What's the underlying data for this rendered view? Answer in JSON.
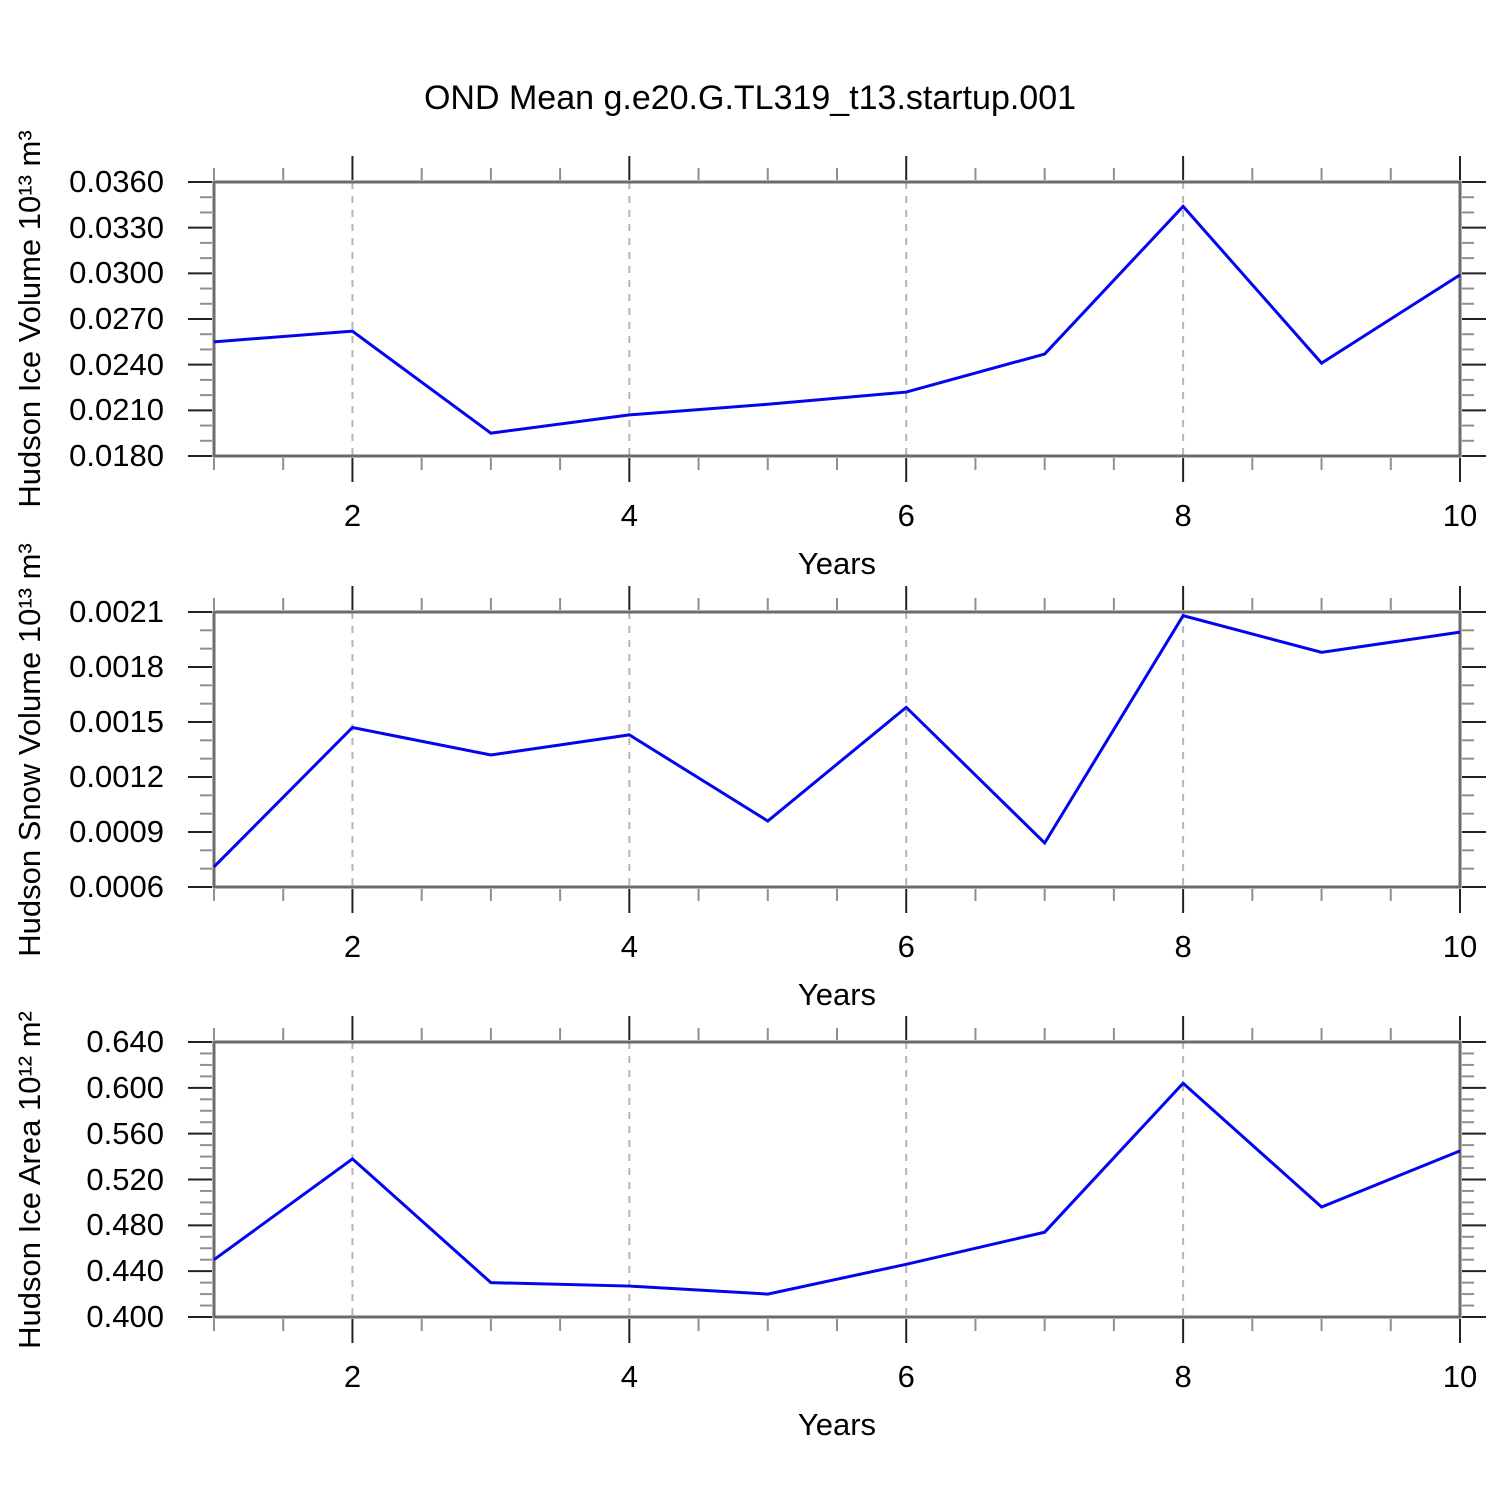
{
  "title": "OND Mean g.e20.G.TL319_t13.startup.001",
  "colors": {
    "line": "#0404ee",
    "grid": "#b5b5b5",
    "frame": "#6b6b6b",
    "tick_major": "#222222",
    "tick_minor": "#8f8f8f",
    "text": "#000000"
  },
  "chart_data": [
    {
      "type": "line",
      "ylabel": "Hudson Ice Volume 10¹³ m³",
      "xlabel": "Years",
      "x": [
        1,
        2,
        3,
        4,
        5,
        6,
        7,
        8,
        9,
        10
      ],
      "values": [
        0.0255,
        0.0262,
        0.0195,
        0.0207,
        0.0214,
        0.0222,
        0.0247,
        0.0344,
        0.0241,
        0.0299
      ],
      "xlim": [
        1,
        10
      ],
      "ylim": [
        0.018,
        0.036
      ],
      "ytick_values": [
        0.036,
        0.033,
        0.03,
        0.027,
        0.024,
        0.021,
        0.018
      ],
      "ytick_labels": [
        "0.0360",
        "0.0330",
        "0.0300",
        "0.0270",
        "0.0240",
        "0.0210",
        "0.0180"
      ],
      "y_minor_step": 0.001,
      "xtick_values": [
        2,
        4,
        6,
        8,
        10
      ],
      "xtick_labels": [
        "2",
        "4",
        "6",
        "8",
        "10"
      ],
      "x_minor_step": 0.5,
      "grid_x": [
        2,
        4,
        6,
        8
      ],
      "grid_on": true,
      "legend": null
    },
    {
      "type": "line",
      "ylabel": "Hudson Snow Volume 10¹³ m³",
      "xlabel": "Years",
      "x": [
        1,
        2,
        3,
        4,
        5,
        6,
        7,
        8,
        9,
        10
      ],
      "values": [
        0.00071,
        0.00147,
        0.00132,
        0.00143,
        0.00096,
        0.00158,
        0.00084,
        0.00208,
        0.00188,
        0.00199
      ],
      "xlim": [
        1,
        10
      ],
      "ylim": [
        0.0006,
        0.0021
      ],
      "ytick_values": [
        0.0021,
        0.0018,
        0.0015,
        0.0012,
        0.0009,
        0.0006
      ],
      "ytick_labels": [
        "0.0021",
        "0.0018",
        "0.0015",
        "0.0012",
        "0.0009",
        "0.0006"
      ],
      "y_minor_step": 0.0001,
      "xtick_values": [
        2,
        4,
        6,
        8,
        10
      ],
      "xtick_labels": [
        "2",
        "4",
        "6",
        "8",
        "10"
      ],
      "x_minor_step": 0.5,
      "grid_x": [
        2,
        4,
        6,
        8
      ],
      "grid_on": true,
      "legend": null
    },
    {
      "type": "line",
      "ylabel": "Hudson Ice Area 10¹² m²",
      "xlabel": "Years",
      "x": [
        1,
        2,
        3,
        4,
        5,
        6,
        7,
        8,
        9,
        10
      ],
      "values": [
        0.45,
        0.538,
        0.43,
        0.427,
        0.42,
        0.446,
        0.474,
        0.604,
        0.496,
        0.545
      ],
      "xlim": [
        1,
        10
      ],
      "ylim": [
        0.4,
        0.64
      ],
      "ytick_values": [
        0.64,
        0.6,
        0.56,
        0.52,
        0.48,
        0.44,
        0.4
      ],
      "ytick_labels": [
        "0.640",
        "0.600",
        "0.560",
        "0.520",
        "0.480",
        "0.440",
        "0.400"
      ],
      "y_minor_step": 0.01,
      "xtick_values": [
        2,
        4,
        6,
        8,
        10
      ],
      "xtick_labels": [
        "2",
        "4",
        "6",
        "8",
        "10"
      ],
      "x_minor_step": 0.5,
      "grid_x": [
        2,
        4,
        6,
        8
      ],
      "grid_on": true,
      "legend": null
    }
  ]
}
